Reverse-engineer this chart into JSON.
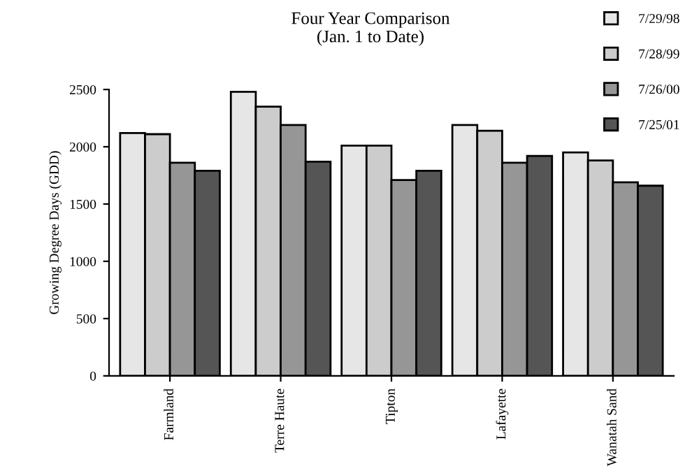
{
  "chart_data": {
    "type": "bar",
    "title": "Four Year Comparison\n(Jan. 1 to Date)",
    "ylabel": "Growing Degree Days (GDD)",
    "categories": [
      "Farmland",
      "Terre Haute",
      "Tipton",
      "Lafayette",
      "Wanatah Sand"
    ],
    "series": [
      {
        "name": "7/29/98",
        "color": "#e6e6e6",
        "values": [
          2120,
          2480,
          2010,
          2190,
          1950
        ]
      },
      {
        "name": "7/28/99",
        "color": "#cccccc",
        "values": [
          2110,
          2350,
          2010,
          2140,
          1880
        ]
      },
      {
        "name": "7/26/00",
        "color": "#969696",
        "values": [
          1860,
          2190,
          1710,
          1860,
          1690
        ]
      },
      {
        "name": "7/25/01",
        "color": "#555555",
        "values": [
          1790,
          1870,
          1790,
          1920,
          1660
        ]
      }
    ],
    "ylim": [
      0,
      2500
    ],
    "yticks": [
      0,
      500,
      1000,
      1500,
      2000,
      2500
    ],
    "grid": false,
    "legend": "top right"
  }
}
